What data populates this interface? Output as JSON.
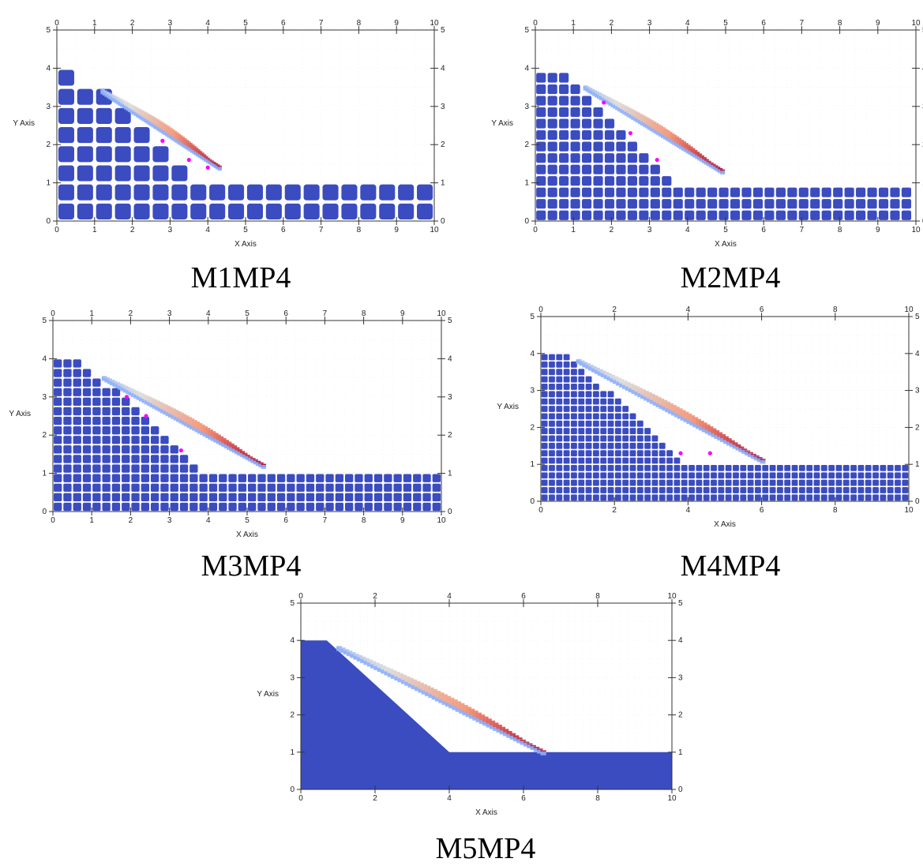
{
  "figure": {
    "captions": [
      "M1MP4",
      "M2MP4",
      "M3MP4",
      "M4MP4",
      "M5MP4"
    ]
  },
  "chart_data": [
    {
      "type": "scatter",
      "id": "M1MP4",
      "caption": "M1MP4",
      "xlabel": "X Axis",
      "ylabel": "Y Axis",
      "xlim": [
        0,
        10
      ],
      "ylim": [
        0,
        5
      ],
      "xticks": [
        0,
        1,
        2,
        3,
        4,
        5,
        6,
        7,
        8,
        9,
        10
      ],
      "yticks": [
        0,
        1,
        2,
        3,
        4,
        5
      ],
      "particle_spacing": 0.5,
      "profile": {
        "x": [
          0,
          0.6,
          0.9,
          4.0,
          10
        ],
        "y": [
          3.9,
          3.9,
          3.6,
          0.9,
          0.9
        ]
      },
      "runout_tip": [
        4.3,
        1.4
      ],
      "colormap": [
        "#3b4cc0",
        "#8db0fe",
        "#dddddd",
        "#f49a7b",
        "#b40426"
      ],
      "markers": [
        [
          2.8,
          2.1
        ],
        [
          3.5,
          1.6
        ],
        [
          4.0,
          1.4
        ]
      ],
      "marker_color": "#ff00ff"
    },
    {
      "type": "scatter",
      "id": "M2MP4",
      "caption": "M2MP4",
      "xlabel": "X Axis",
      "ylabel": "Y Axis",
      "xlim": [
        0,
        10
      ],
      "ylim": [
        0,
        5
      ],
      "xticks": [
        0,
        1,
        2,
        3,
        4,
        5,
        6,
        7,
        8,
        9,
        10
      ],
      "yticks": [
        0,
        1,
        2,
        3,
        4,
        5
      ],
      "particle_spacing": 0.3,
      "profile": {
        "x": [
          0,
          0.7,
          1.0,
          3.6,
          10
        ],
        "y": [
          4.0,
          4.0,
          3.7,
          1.0,
          1.0
        ]
      },
      "runout_tip": [
        4.9,
        1.3
      ],
      "colormap": [
        "#3b4cc0",
        "#8db0fe",
        "#dddddd",
        "#f49a7b",
        "#b40426"
      ],
      "markers": [
        [
          1.8,
          3.1
        ],
        [
          2.5,
          2.3
        ],
        [
          3.2,
          1.6
        ]
      ],
      "marker_color": "#ff00ff"
    },
    {
      "type": "scatter",
      "id": "M3MP4",
      "caption": "M3MP4",
      "xlabel": "X Axis",
      "ylabel": "Y Axis",
      "xlim": [
        0,
        10
      ],
      "ylim": [
        0,
        5
      ],
      "xticks": [
        0,
        1,
        2,
        3,
        4,
        5,
        6,
        7,
        8,
        9,
        10
      ],
      "yticks": [
        0,
        1,
        2,
        3,
        4,
        5
      ],
      "particle_spacing": 0.25,
      "profile": {
        "x": [
          0,
          0.7,
          1.0,
          4.0,
          10
        ],
        "y": [
          4.0,
          4.0,
          3.7,
          1.0,
          1.0
        ]
      },
      "runout_tip": [
        5.4,
        1.2
      ],
      "colormap": [
        "#3b4cc0",
        "#8db0fe",
        "#dddddd",
        "#f49a7b",
        "#b40426"
      ],
      "markers": [
        [
          1.9,
          3.0
        ],
        [
          2.4,
          2.5
        ],
        [
          3.3,
          1.6
        ]
      ],
      "marker_color": "#ff00ff"
    },
    {
      "type": "scatter",
      "id": "M4MP4",
      "caption": "M4MP4",
      "xlabel": "X Axis",
      "ylabel": "Y Axis",
      "xlim": [
        0,
        10
      ],
      "ylim": [
        0,
        5
      ],
      "xticks": [
        0,
        2,
        4,
        6,
        8,
        10
      ],
      "yticks": [
        0,
        1,
        2,
        3,
        4,
        5
      ],
      "particle_spacing": 0.2,
      "profile": {
        "x": [
          0,
          0.7,
          4.0,
          10
        ],
        "y": [
          4.0,
          4.0,
          1.0,
          1.0
        ]
      },
      "runout_tip": [
        6.0,
        1.1
      ],
      "colormap": [
        "#3b4cc0",
        "#8db0fe",
        "#dddddd",
        "#f49a7b",
        "#b40426"
      ],
      "markers": [
        [
          3.8,
          1.3
        ],
        [
          4.6,
          1.3
        ]
      ],
      "marker_color": "#ff00ff"
    },
    {
      "type": "scatter",
      "id": "M5MP4",
      "caption": "M5MP4",
      "xlabel": "X Axis",
      "ylabel": "Y Axis",
      "xlim": [
        0,
        10
      ],
      "ylim": [
        0,
        5
      ],
      "xticks": [
        0,
        2,
        4,
        6,
        8,
        10
      ],
      "yticks": [
        0,
        1,
        2,
        3,
        4,
        5
      ],
      "particle_spacing": 0.1,
      "profile": {
        "x": [
          0,
          0.7,
          4.0,
          10
        ],
        "y": [
          4.0,
          4.0,
          1.0,
          1.0
        ]
      },
      "runout_tip": [
        6.5,
        1.0
      ],
      "colormap": [
        "#3b4cc0",
        "#8db0fe",
        "#dddddd",
        "#f49a7b",
        "#b40426"
      ],
      "markers": [],
      "marker_color": "#ff00ff"
    }
  ]
}
